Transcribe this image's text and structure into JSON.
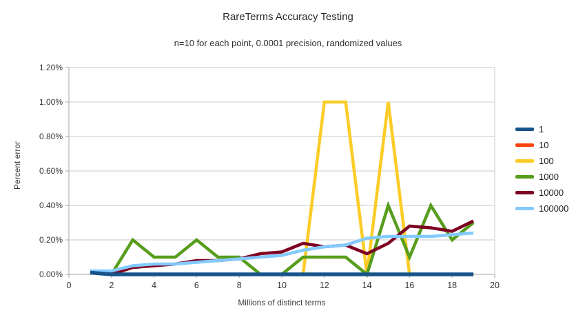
{
  "chart": {
    "title": "RareTerms Accuracy Testing",
    "subtitle": "n=10 for each point, 0.0001 precision, randomized values",
    "xlabel": "Millions of distinct terms",
    "ylabel": "Percent error"
  },
  "chart_data": {
    "type": "line",
    "title": "RareTerms Accuracy Testing",
    "subtitle": "n=10 for each point, 0.0001 precision, randomized values",
    "xlabel": "Millions of distinct terms",
    "ylabel": "Percent error",
    "x": [
      1,
      2,
      3,
      4,
      5,
      6,
      7,
      8,
      9,
      10,
      11,
      12,
      13,
      14,
      15,
      16,
      17,
      18,
      19
    ],
    "xlim": [
      0,
      20
    ],
    "ylim": [
      0,
      1.2
    ],
    "y_unit": "percent",
    "grid": "horizontal",
    "legend_position": "right",
    "xtick_values": [
      0,
      2,
      4,
      6,
      8,
      10,
      12,
      14,
      16,
      18,
      20
    ],
    "xtick_labels": [
      "0",
      "2",
      "4",
      "6",
      "8",
      "10",
      "12",
      "14",
      "16",
      "18",
      "20"
    ],
    "ytick_values": [
      0,
      0.2,
      0.4,
      0.6,
      0.8,
      1.0,
      1.2
    ],
    "ytick_labels": [
      "0.00%",
      "0.20%",
      "0.40%",
      "0.60%",
      "0.80%",
      "1.00%",
      "1.20%"
    ],
    "series": [
      {
        "name": "1",
        "color": "#17548a",
        "values": [
          0.01,
          0,
          0,
          0,
          0,
          0,
          0,
          0,
          0,
          0,
          0,
          0,
          0,
          0,
          0,
          0,
          0,
          0,
          0
        ]
      },
      {
        "name": "10",
        "color": "#ff420e",
        "values": [
          0.01,
          0,
          0,
          0,
          0,
          0,
          0,
          0,
          0,
          0,
          0,
          0,
          0,
          0,
          0,
          0,
          0,
          0,
          0
        ]
      },
      {
        "name": "100",
        "color": "#fbcc27",
        "values": [
          0.01,
          0,
          0,
          0,
          0,
          0,
          0,
          0,
          0,
          0,
          0,
          1.0,
          1.0,
          0,
          1.0,
          0,
          0,
          0,
          0
        ]
      },
      {
        "name": "1000",
        "color": "#579d1c",
        "values": [
          0.01,
          0,
          0.2,
          0.1,
          0.1,
          0.2,
          0.1,
          0.1,
          0,
          0,
          0.1,
          0.1,
          0.1,
          0,
          0.4,
          0.1,
          0.4,
          0.2,
          0.3
        ]
      },
      {
        "name": "10000",
        "color": "#7e0021",
        "values": [
          0.01,
          0,
          0.04,
          0.05,
          0.06,
          0.08,
          0.08,
          0.09,
          0.12,
          0.13,
          0.18,
          0.16,
          0.17,
          0.12,
          0.18,
          0.28,
          0.27,
          0.25,
          0.31
        ]
      },
      {
        "name": "100000",
        "color": "#83caff",
        "values": [
          0.02,
          0.02,
          0.05,
          0.06,
          0.06,
          0.07,
          0.08,
          0.09,
          0.1,
          0.11,
          0.14,
          0.16,
          0.17,
          0.21,
          0.22,
          0.22,
          0.22,
          0.23,
          0.24
        ]
      }
    ],
    "draw_order": [
      "100",
      "1000",
      "10000",
      "100000",
      "10",
      "1"
    ]
  },
  "colors": {
    "grid": "#c8c8c8",
    "axis": "#a6a6a6",
    "tick_text": "#333333"
  }
}
